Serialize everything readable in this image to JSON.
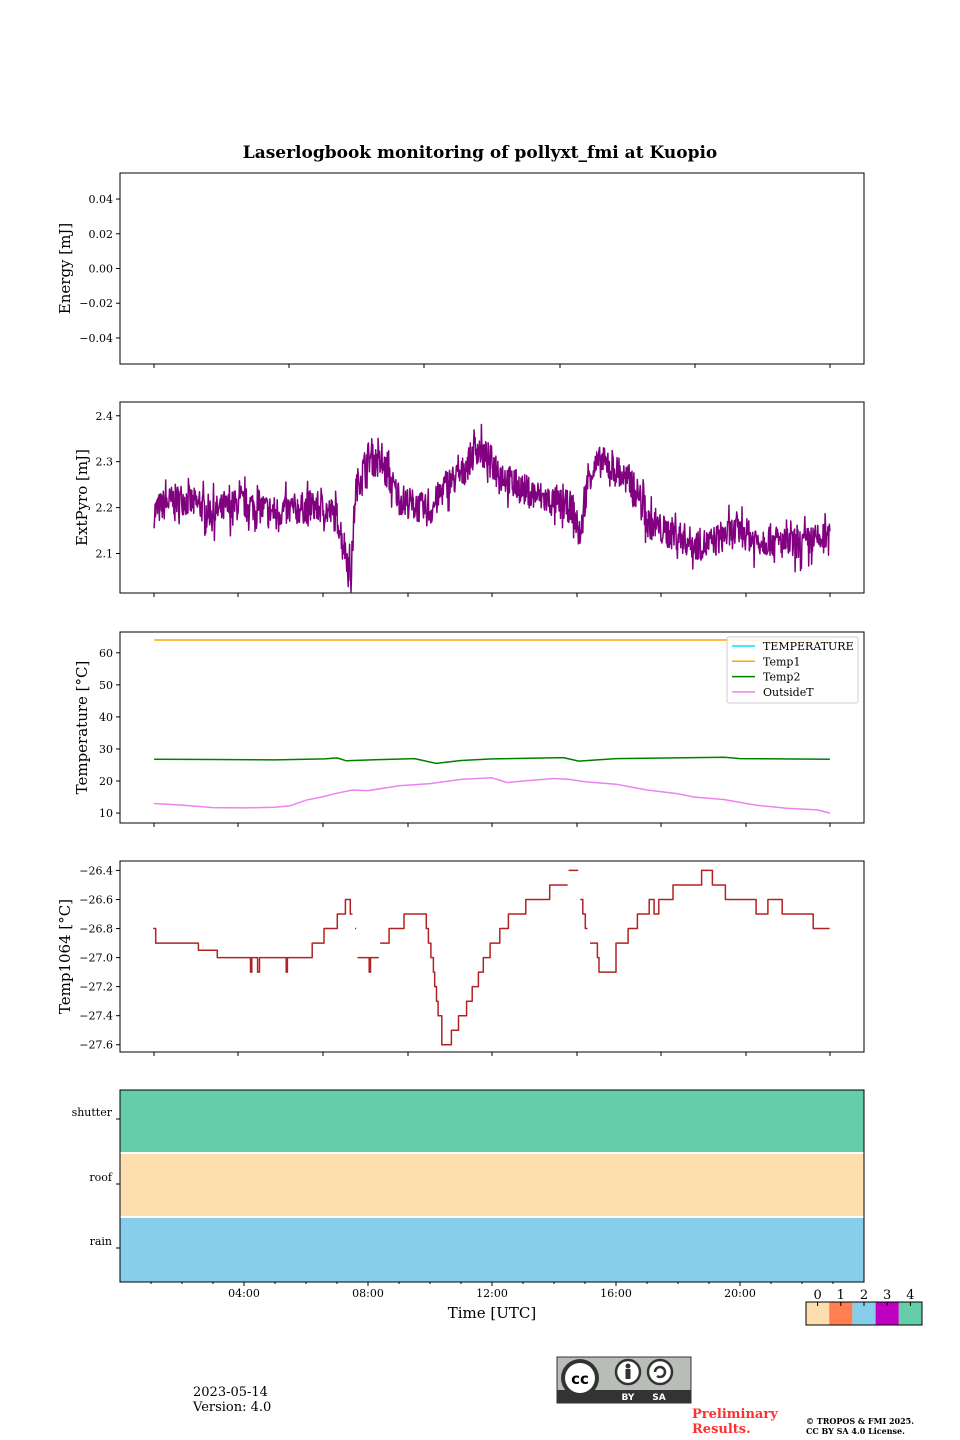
{
  "title": "Laserlogbook monitoring of pollyxt_fmi at Kuopio",
  "footer": {
    "date": "2023-05-14",
    "version": "Version: 4.0",
    "preliminary_line1": "Preliminary",
    "preliminary_line2": "Results.",
    "copyright_line1": "© TROPOS & FMI 2025.",
    "copyright_line2": "CC BY SA 4.0 License.",
    "license_badge": {
      "cc": "cc",
      "by": "BY",
      "sa": "SA"
    }
  },
  "chart_data": [
    {
      "id": "energy",
      "type": "line",
      "ylabel": "Energy [mJ]",
      "ylim": [
        -0.055,
        0.055
      ],
      "yticks": [
        0.04,
        0.02,
        0.0,
        -0.02,
        -0.04
      ],
      "ytick_labels": [
        "0.04",
        "0.02",
        "0.00",
        "−0.02",
        "−0.04"
      ],
      "series": []
    },
    {
      "id": "extpyro",
      "type": "line",
      "ylabel": "ExtPyro [mJ]",
      "ylim": [
        2.014,
        2.43
      ],
      "yticks": [
        2.1,
        2.2,
        2.3,
        2.4
      ],
      "ytick_labels": [
        "2.1",
        "2.2",
        "2.3",
        "2.4"
      ],
      "color": "#800080",
      "series": [
        {
          "name": "ExtPyro",
          "x_hours": [
            1.1,
            1.5,
            2,
            3,
            4,
            5,
            6,
            6.5,
            7.0,
            7.3,
            7.45,
            7.6,
            8,
            8.5,
            9,
            10,
            10.5,
            11,
            11.5,
            12,
            12.5,
            13,
            14,
            14.6,
            14.85,
            15.1,
            15.5,
            16,
            16.5,
            16.8,
            17,
            17.5,
            18,
            18.5,
            19,
            19.5,
            20,
            20.5,
            21,
            21.5,
            22,
            22.5,
            22.9
          ],
          "values": [
            2.19,
            2.21,
            2.22,
            2.19,
            2.21,
            2.19,
            2.2,
            2.2,
            2.18,
            2.1,
            2.05,
            2.24,
            2.31,
            2.29,
            2.22,
            2.19,
            2.25,
            2.27,
            2.33,
            2.3,
            2.26,
            2.24,
            2.21,
            2.2,
            2.13,
            2.27,
            2.3,
            2.28,
            2.25,
            2.22,
            2.17,
            2.15,
            2.14,
            2.12,
            2.12,
            2.14,
            2.15,
            2.13,
            2.13,
            2.12,
            2.12,
            2.13,
            2.13
          ],
          "noise_amplitude": 0.035
        }
      ]
    },
    {
      "id": "temperature",
      "type": "line",
      "ylabel": "Temperature [°C]",
      "ylim": [
        6.9,
        66.5
      ],
      "yticks": [
        10,
        20,
        30,
        40,
        50,
        60
      ],
      "ytick_labels": [
        "10",
        "20",
        "30",
        "40",
        "50",
        "60"
      ],
      "legend_position": "upper-right",
      "series": [
        {
          "name": "TEMPERATURE",
          "color": "#00e5ee",
          "x_hours": [],
          "values": []
        },
        {
          "name": "Temp1",
          "color": "#ffa500",
          "x_hours": [
            1.1,
            22.9
          ],
          "values": [
            64,
            64
          ]
        },
        {
          "name": "Temp2",
          "color": "#008000",
          "x_hours": [
            1.1,
            3,
            5,
            6.6,
            7.0,
            7.3,
            8.5,
            9.5,
            10.2,
            11,
            12,
            14.3,
            14.8,
            16,
            19.5,
            20,
            22.9
          ],
          "values": [
            26.8,
            26.7,
            26.6,
            26.9,
            27.2,
            26.3,
            26.7,
            27.0,
            25.5,
            26.4,
            26.9,
            27.3,
            26.2,
            27.0,
            27.4,
            27.0,
            26.8
          ]
        },
        {
          "name": "OutsideT",
          "color": "#ee82ee",
          "x_hours": [
            1.1,
            2,
            3,
            4,
            5,
            5.5,
            6,
            6.5,
            7,
            7.5,
            8,
            9,
            10,
            11,
            12,
            12.5,
            13,
            14,
            14.5,
            15,
            16,
            17,
            18,
            18.5,
            19.5,
            20.5,
            21.5,
            22.5,
            22.9
          ],
          "values": [
            13,
            12.5,
            11.7,
            11.6,
            11.8,
            12.3,
            14,
            15,
            16.2,
            17.2,
            17,
            18.5,
            19.2,
            20.5,
            21,
            19.5,
            20,
            20.8,
            20.5,
            19.8,
            19,
            17.2,
            16,
            15,
            14.2,
            12.5,
            11.5,
            11,
            10
          ]
        }
      ]
    },
    {
      "id": "temp1064",
      "type": "line",
      "ylabel": "Temp1064 [°C]",
      "ylim": [
        -27.65,
        -26.335
      ],
      "yticks": [
        -26.4,
        -26.6,
        -26.8,
        -27.0,
        -27.2,
        -27.4,
        -27.6
      ],
      "ytick_labels": [
        "−26.4",
        "−26.6",
        "−26.8",
        "−27.0",
        "−27.2",
        "−27.4",
        "−27.6"
      ],
      "color": "#b22222",
      "series": [
        {
          "name": "Temp1064",
          "step": "post",
          "x_hours": [
            1.07,
            1.15,
            2.53,
            3.14,
            4.21,
            4.25,
            4.44,
            4.5,
            5.36,
            5.4,
            6.2,
            6.58,
            7.01,
            7.27,
            7.43,
            7.5,
            7.58,
            7.62,
            7.66,
            8.04,
            8.08,
            8.35,
            8.39,
            8.68,
            9.16,
            9.88,
            9.95,
            10.03,
            10.11,
            10.15,
            10.21,
            10.26,
            10.38,
            10.69,
            10.92,
            11.18,
            11.36,
            11.56,
            11.72,
            11.94,
            12.25,
            12.53,
            13.09,
            13.86,
            14.44,
            14.47,
            14.78,
            14.85,
            14.93,
            15.01,
            15.08,
            15.16,
            15.4,
            15.45,
            16.0,
            16.39,
            16.69,
            17.07,
            17.23,
            17.38,
            17.84,
            18.76,
            19.11,
            19.53,
            20.52,
            20.9,
            21.36,
            21.75,
            22.36,
            22.89
          ],
          "values": [
            -26.8,
            -26.9,
            -26.95,
            -27.0,
            -27.1,
            -27.0,
            -27.1,
            -27.0,
            -27.1,
            -27.0,
            -26.9,
            -26.8,
            -26.7,
            -26.6,
            -26.7,
            null,
            -26.8,
            null,
            -27.0,
            -27.1,
            -27.0,
            null,
            -26.9,
            -26.8,
            -26.7,
            -26.8,
            -26.9,
            -27.0,
            -27.1,
            -27.2,
            -27.3,
            -27.4,
            -27.6,
            -27.5,
            -27.4,
            -27.3,
            -27.2,
            -27.1,
            -27.0,
            -26.9,
            -26.8,
            -26.7,
            -26.6,
            -26.5,
            null,
            -26.4,
            null,
            -26.6,
            -26.7,
            -26.8,
            null,
            -26.9,
            -27.0,
            -27.1,
            -26.9,
            -26.8,
            -26.7,
            -26.6,
            -26.7,
            -26.6,
            -26.5,
            -26.4,
            -26.5,
            -26.6,
            -26.7,
            -26.6,
            -26.7,
            -26.7,
            -26.8,
            -26.8
          ]
        }
      ]
    },
    {
      "id": "status",
      "type": "heatmap",
      "xlabel": "Time [UTC]",
      "xlim_hours": [
        0,
        24
      ],
      "xticks_hours": [
        4,
        8,
        12,
        16,
        20
      ],
      "xtick_labels": [
        "04:00",
        "08:00",
        "12:00",
        "16:00",
        "20:00"
      ],
      "rows": [
        {
          "label": "shutter",
          "value": 4
        },
        {
          "label": "roof",
          "value": 0
        },
        {
          "label": "rain",
          "value": 2
        }
      ],
      "colorbar": {
        "ticks": [
          "0",
          "1",
          "2",
          "3",
          "4"
        ],
        "colors": [
          "#fddeae",
          "#ff7f50",
          "#87ceeb",
          "#c000c0",
          "#66cdaa"
        ]
      }
    }
  ]
}
